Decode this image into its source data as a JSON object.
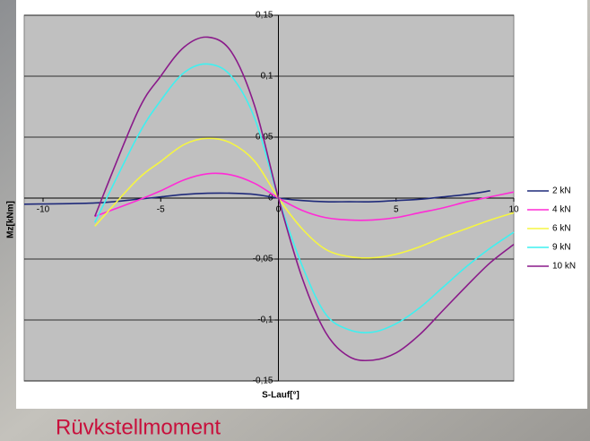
{
  "chart_data": {
    "type": "line",
    "caption": "Rüvkstellmoment",
    "x_label": "S-Lauf[°]",
    "y_label": "Mz[kNm]",
    "x": [
      -10.8,
      -7.8,
      -6,
      -5,
      -4,
      -3,
      -2,
      -1,
      0,
      1,
      2,
      3,
      4,
      5,
      6,
      7,
      8,
      9,
      10
    ],
    "series": [
      {
        "name": "2 kN",
        "color": "#1f2a7a",
        "values": [
          -0.005,
          -0.004,
          -0.001,
          0.001,
          0.003,
          0.004,
          0.004,
          0.003,
          0,
          -0.002,
          -0.003,
          -0.003,
          -0.003,
          -0.002,
          -0.001,
          0.001,
          0.003,
          0.006,
          null
        ]
      },
      {
        "name": "4 kN",
        "color": "#ff2bd6",
        "values": [
          null,
          -0.015,
          -0.002,
          0.006,
          0.015,
          0.02,
          0.019,
          0.012,
          0,
          -0.01,
          -0.016,
          -0.018,
          -0.018,
          -0.016,
          -0.012,
          -0.008,
          -0.003,
          0.001,
          0.005
        ]
      },
      {
        "name": "6 kN",
        "color": "#f5f542",
        "values": [
          null,
          -0.023,
          0.015,
          0.03,
          0.044,
          0.049,
          0.045,
          0.03,
          0,
          -0.025,
          -0.042,
          -0.048,
          -0.049,
          -0.046,
          -0.04,
          -0.032,
          -0.025,
          -0.018,
          -0.012
        ]
      },
      {
        "name": "9 kN",
        "color": "#3ff0f0",
        "values": [
          null,
          -0.02,
          0.05,
          0.08,
          0.103,
          0.11,
          0.1,
          0.065,
          0,
          -0.055,
          -0.095,
          -0.108,
          -0.11,
          -0.103,
          -0.09,
          -0.073,
          -0.056,
          -0.041,
          -0.028
        ]
      },
      {
        "name": "10 kN",
        "color": "#8a1a8a",
        "values": [
          null,
          -0.015,
          0.07,
          0.1,
          0.124,
          0.132,
          0.12,
          0.075,
          0,
          -0.065,
          -0.11,
          -0.13,
          -0.133,
          -0.127,
          -0.112,
          -0.092,
          -0.072,
          -0.053,
          -0.038
        ]
      }
    ],
    "xlim": [
      -10.8,
      10
    ],
    "ylim": [
      -0.15,
      0.15
    ],
    "xticks": [
      -10,
      -5,
      0,
      5,
      10
    ],
    "yticks": [
      {
        "value": -0.15,
        "label": "-0,15"
      },
      {
        "value": -0.1,
        "label": "-0,1"
      },
      {
        "value": -0.05,
        "label": "-0,05"
      },
      0,
      {
        "value": 0.05,
        "label": "0,05"
      },
      {
        "value": 0.1,
        "label": "0,1"
      },
      {
        "value": 0.15,
        "label": "0,15"
      }
    ],
    "grid": true,
    "legend": "right"
  }
}
